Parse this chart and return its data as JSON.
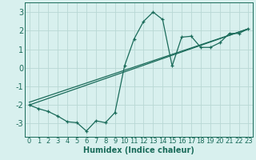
{
  "title": "",
  "xlabel": "Humidex (Indice chaleur)",
  "bg_color": "#d8f0ee",
  "grid_color": "#b8d8d4",
  "line_color": "#1a6b5a",
  "spine_color": "#1a6b5a",
  "xlim": [
    -0.5,
    23.5
  ],
  "ylim": [
    -3.7,
    3.5
  ],
  "yticks": [
    -3,
    -2,
    -1,
    0,
    1,
    2,
    3
  ],
  "xticks": [
    0,
    1,
    2,
    3,
    4,
    5,
    6,
    7,
    8,
    9,
    10,
    11,
    12,
    13,
    14,
    15,
    16,
    17,
    18,
    19,
    20,
    21,
    22,
    23
  ],
  "line1_x": [
    0,
    1,
    2,
    3,
    4,
    5,
    6,
    7,
    8,
    9,
    10,
    11,
    12,
    13,
    14,
    15,
    16,
    17,
    18,
    19,
    20,
    21,
    22,
    23
  ],
  "line1_y": [
    -2.0,
    -2.2,
    -2.35,
    -2.6,
    -2.9,
    -2.95,
    -3.4,
    -2.85,
    -2.95,
    -2.4,
    0.1,
    1.55,
    2.5,
    3.0,
    2.6,
    0.1,
    1.65,
    1.7,
    1.1,
    1.1,
    1.35,
    1.85,
    1.85,
    2.1
  ],
  "line2_x": [
    0,
    23
  ],
  "line2_y": [
    -2.0,
    2.1
  ],
  "line3_x": [
    0,
    23
  ],
  "line3_y": [
    -1.85,
    2.1
  ],
  "tick_fontsize": 6,
  "xlabel_fontsize": 7
}
